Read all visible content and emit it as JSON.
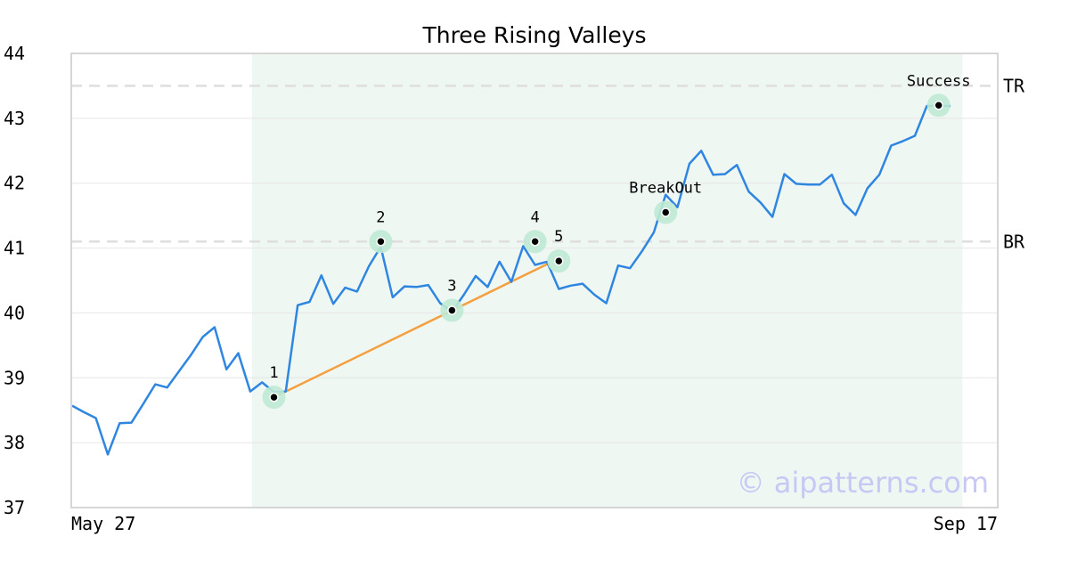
{
  "chart_data": {
    "type": "line",
    "title": "Three Rising Valleys",
    "xlabel": "",
    "ylabel": "",
    "ylim": [
      37,
      44
    ],
    "yticks": [
      37,
      38,
      39,
      40,
      41,
      42,
      43,
      44
    ],
    "x_tick_labels": {
      "first": "May 27",
      "last": "Sep 17"
    },
    "grid": true,
    "series": [
      {
        "color": "#2f86e0",
        "values": [
          38.57,
          38.47,
          38.38,
          37.82,
          38.3,
          38.31,
          38.6,
          38.9,
          38.85,
          39.1,
          39.35,
          39.63,
          39.78,
          39.13,
          39.38,
          38.79,
          38.93,
          38.78,
          38.79,
          40.12,
          40.17,
          40.58,
          40.14,
          40.39,
          40.33,
          40.72,
          41.02,
          40.24,
          40.41,
          40.4,
          40.43,
          40.15,
          40.02,
          40.28,
          40.57,
          40.4,
          40.79,
          40.48,
          41.03,
          40.74,
          40.79,
          40.37,
          40.42,
          40.45,
          40.28,
          40.15,
          40.73,
          40.69,
          40.95,
          41.24,
          41.82,
          41.63,
          42.3,
          42.5,
          42.13,
          42.14,
          42.28,
          41.87,
          41.7,
          41.48,
          42.14,
          41.99,
          41.98,
          41.98,
          42.13,
          41.69,
          41.51,
          41.92,
          42.13,
          42.58,
          42.65,
          42.73,
          43.19,
          43.19,
          43.19
        ]
      }
    ],
    "pattern_points": [
      {
        "label": "1",
        "index": 17,
        "value": 38.7
      },
      {
        "label": "2",
        "index": 26,
        "value": 41.1
      },
      {
        "label": "3",
        "index": 32,
        "value": 40.04
      },
      {
        "label": "4",
        "index": 39,
        "value": 41.1
      },
      {
        "label": "5",
        "index": 41,
        "value": 40.8
      },
      {
        "label": "BreakOut",
        "index": 50,
        "value": 41.55
      },
      {
        "label": "Success",
        "index": 73,
        "value": 43.2
      }
    ],
    "trendline": {
      "color": "#f4a040",
      "from": {
        "index": 17,
        "value": 38.7
      },
      "to": {
        "index": 40,
        "value": 40.75
      }
    },
    "reference_lines": [
      {
        "label": "TR",
        "value": 43.5
      },
      {
        "label": "BR",
        "value": 41.1
      }
    ],
    "highlight_range": {
      "start_index": 15,
      "end_index": 75
    },
    "watermark": "© aipatterns.com"
  }
}
